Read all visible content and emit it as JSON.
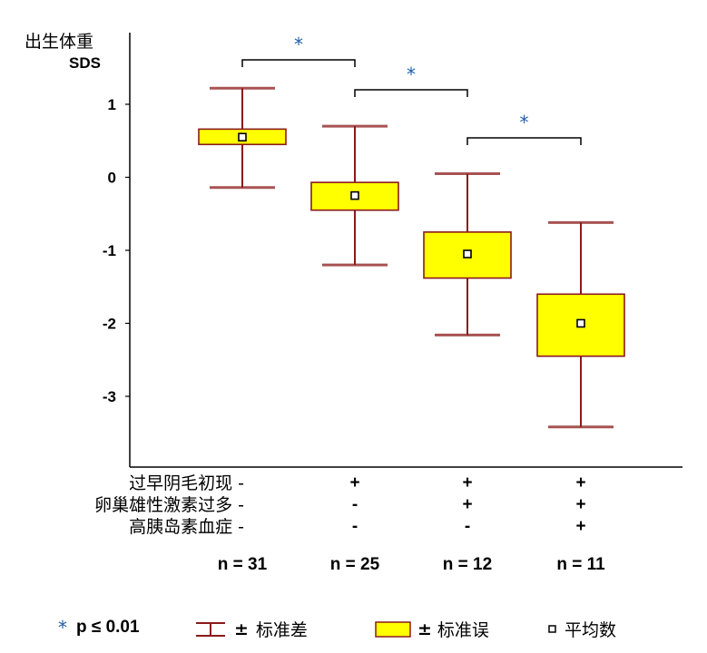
{
  "chart_data": {
    "type": "box",
    "ylabel_line1": "出生体重",
    "ylabel_line2": "SDS",
    "ylim": [
      -4,
      2
    ],
    "yticks": [
      "1",
      "0",
      "-1",
      "-2",
      "-3"
    ],
    "row_labels": [
      "过早阴毛初现",
      "卵巢雄性激素过多",
      "高胰岛素血症"
    ],
    "groups": [
      {
        "signs": [
          "-",
          "-",
          "-"
        ],
        "n_label": "n = 31",
        "mean": 0.55,
        "se_low": 0.45,
        "se_high": 0.66,
        "sd_low": -0.14,
        "sd_high": 1.22
      },
      {
        "signs": [
          "+",
          "-",
          "-"
        ],
        "n_label": "n = 25",
        "mean": -0.25,
        "se_low": -0.45,
        "se_high": -0.07,
        "sd_low": -1.2,
        "sd_high": 0.7
      },
      {
        "signs": [
          "+",
          "+",
          "-"
        ],
        "n_label": "n = 12",
        "mean": -1.05,
        "se_low": -1.38,
        "se_high": -0.75,
        "sd_low": -2.16,
        "sd_high": 0.05
      },
      {
        "signs": [
          "+",
          "+",
          "+"
        ],
        "n_label": "n = 11",
        "mean": -2.0,
        "se_low": -2.45,
        "se_high": -1.6,
        "sd_low": -3.42,
        "sd_high": -0.62
      }
    ],
    "significance": [
      {
        "from": 0,
        "to": 1,
        "label": "*"
      },
      {
        "from": 1,
        "to": 2,
        "label": "*"
      },
      {
        "from": 2,
        "to": 3,
        "label": "*"
      }
    ],
    "colors": {
      "box_fill": "#ffff00",
      "box_stroke": "#8b1a1a",
      "whisker": "#8b1a1a",
      "sig_star": "#1e5fa8"
    }
  },
  "legend": {
    "star_symbol": "*",
    "p_label": "p ≤ 0.01",
    "sd_prefix": "±",
    "sd_label": "标准差",
    "se_prefix": "±",
    "se_label": "标准误",
    "mean_label": "平均数"
  }
}
